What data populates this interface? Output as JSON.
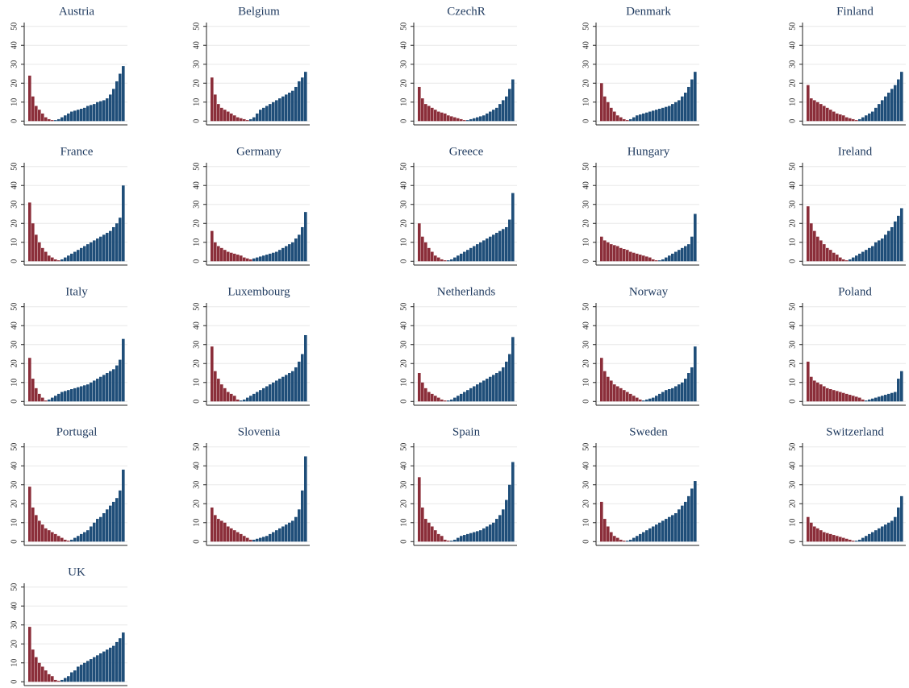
{
  "chart_data": [
    {
      "type": "bar",
      "title": "Austria",
      "series": [
        {
          "color": "#8b2e3a",
          "values": [
            24,
            13,
            8,
            6,
            4,
            2,
            1,
            0.5
          ]
        },
        {
          "color": "#1f4e79",
          "values": [
            0.5,
            1,
            2,
            3,
            4,
            5,
            5.5,
            6,
            6.5,
            7,
            8,
            8.5,
            9,
            10,
            10.5,
            11,
            12,
            14,
            17,
            21,
            25,
            29
          ]
        }
      ],
      "ylim": [
        -2,
        52
      ],
      "yticks": [
        0,
        10,
        20,
        30,
        40,
        50
      ],
      "grid": true
    },
    {
      "type": "bar",
      "title": "Belgium",
      "series": [
        {
          "color": "#8b2e3a",
          "values": [
            23,
            14,
            9,
            7,
            6,
            5,
            4,
            3,
            2,
            1.5,
            1,
            0.5
          ]
        },
        {
          "color": "#1f4e79",
          "values": [
            1,
            2,
            4,
            6,
            7,
            8,
            9,
            10,
            11,
            12,
            13,
            14,
            15,
            16,
            18,
            21,
            23,
            26
          ]
        }
      ],
      "ylim": [
        -2,
        52
      ],
      "yticks": [
        0,
        10,
        20,
        30,
        40,
        50
      ],
      "grid": true
    },
    {
      "type": "bar",
      "title": "CzechR",
      "series": [
        {
          "color": "#8b2e3a",
          "values": [
            18,
            12,
            9,
            8,
            7,
            6,
            5,
            4.5,
            4,
            3,
            2.5,
            2,
            1.5,
            1,
            0.5
          ]
        },
        {
          "color": "#1f4e79",
          "values": [
            0.5,
            1,
            1.5,
            2,
            2.5,
            3,
            4,
            5,
            6,
            7,
            9,
            11,
            13,
            17,
            22
          ]
        }
      ],
      "ylim": [
        -2,
        52
      ],
      "yticks": [
        0,
        10,
        20,
        30,
        40,
        50
      ],
      "grid": true
    },
    {
      "type": "bar",
      "title": "Denmark",
      "series": [
        {
          "color": "#8b2e3a",
          "values": [
            20,
            13,
            10,
            7,
            5,
            3,
            2,
            1,
            0.5
          ]
        },
        {
          "color": "#1f4e79",
          "values": [
            1,
            2,
            3,
            3.5,
            4,
            4.5,
            5,
            5.5,
            6,
            6.5,
            7,
            7.5,
            8,
            9,
            10,
            11,
            13,
            15,
            18,
            22,
            26
          ]
        }
      ],
      "ylim": [
        -2,
        52
      ],
      "yticks": [
        0,
        10,
        20,
        30,
        40,
        50
      ],
      "grid": true
    },
    {
      "type": "bar",
      "title": "Finland",
      "series": [
        {
          "color": "#8b2e3a",
          "values": [
            19,
            12,
            11,
            10,
            9,
            8,
            7,
            6,
            5,
            4,
            3.5,
            3,
            2,
            1.5,
            1,
            0.5
          ]
        },
        {
          "color": "#1f4e79",
          "values": [
            1,
            2,
            3,
            4,
            5,
            7,
            9,
            11,
            13,
            15,
            17,
            19,
            22,
            26
          ]
        }
      ],
      "ylim": [
        -2,
        52
      ],
      "yticks": [
        0,
        10,
        20,
        30,
        40,
        50
      ],
      "grid": true
    },
    {
      "type": "bar",
      "title": "France",
      "series": [
        {
          "color": "#8b2e3a",
          "values": [
            31,
            20,
            14,
            10,
            7,
            5,
            3,
            2,
            1,
            0.5
          ]
        },
        {
          "color": "#1f4e79",
          "values": [
            1,
            2,
            3,
            4,
            5,
            6,
            7,
            8,
            9,
            10,
            11,
            12,
            13,
            14,
            15,
            16,
            18,
            20,
            23,
            40
          ]
        }
      ],
      "ylim": [
        -2,
        52
      ],
      "yticks": [
        0,
        10,
        20,
        30,
        40,
        50
      ],
      "grid": true
    },
    {
      "type": "bar",
      "title": "Germany",
      "series": [
        {
          "color": "#8b2e3a",
          "values": [
            16,
            10,
            8,
            7,
            6,
            5,
            4.5,
            4,
            3.5,
            3,
            2,
            1.5,
            1
          ]
        },
        {
          "color": "#1f4e79",
          "values": [
            1.5,
            2,
            2.5,
            3,
            3.5,
            4,
            4.5,
            5,
            6,
            7,
            8,
            9,
            10,
            12,
            14,
            18,
            26
          ]
        }
      ],
      "ylim": [
        -2,
        52
      ],
      "yticks": [
        0,
        10,
        20,
        30,
        40,
        50
      ],
      "grid": true
    },
    {
      "type": "bar",
      "title": "Greece",
      "series": [
        {
          "color": "#8b2e3a",
          "values": [
            20,
            13,
            10,
            7,
            5,
            3,
            2,
            1,
            0.5
          ]
        },
        {
          "color": "#1f4e79",
          "values": [
            0.5,
            1,
            2,
            3,
            4,
            5,
            6,
            7,
            8,
            9,
            10,
            11,
            12,
            13,
            14,
            15,
            16,
            17,
            18,
            22,
            36
          ]
        }
      ],
      "ylim": [
        -2,
        52
      ],
      "yticks": [
        0,
        10,
        20,
        30,
        40,
        50
      ],
      "grid": true
    },
    {
      "type": "bar",
      "title": "Hungary",
      "series": [
        {
          "color": "#8b2e3a",
          "values": [
            13,
            11,
            10,
            9,
            8.5,
            8,
            7,
            6.5,
            6,
            5,
            4.5,
            4,
            3.5,
            3,
            2.5,
            2,
            1,
            0.5
          ]
        },
        {
          "color": "#1f4e79",
          "values": [
            0.5,
            1,
            2,
            3,
            4,
            5,
            6,
            7,
            8,
            9,
            13,
            25
          ]
        }
      ],
      "ylim": [
        -2,
        52
      ],
      "yticks": [
        0,
        10,
        20,
        30,
        40,
        50
      ],
      "grid": true
    },
    {
      "type": "bar",
      "title": "Ireland",
      "series": [
        {
          "color": "#8b2e3a",
          "values": [
            29,
            20,
            16,
            13,
            11,
            9,
            7,
            6,
            4.5,
            3.5,
            2,
            1,
            0.5
          ]
        },
        {
          "color": "#1f4e79",
          "values": [
            1,
            2,
            3,
            4,
            5,
            6,
            7,
            8,
            10,
            11,
            12,
            14,
            16,
            18,
            21,
            24,
            28
          ]
        }
      ],
      "ylim": [
        -2,
        52
      ],
      "yticks": [
        0,
        10,
        20,
        30,
        40,
        50
      ],
      "grid": true
    },
    {
      "type": "bar",
      "title": "Italy",
      "series": [
        {
          "color": "#8b2e3a",
          "values": [
            23,
            12,
            7,
            4,
            2,
            0.5
          ]
        },
        {
          "color": "#1f4e79",
          "values": [
            1,
            2,
            3,
            4,
            5,
            5.5,
            6,
            6.5,
            7,
            7.5,
            8,
            8.5,
            9,
            10,
            11,
            12,
            13,
            14,
            15,
            16,
            17,
            19,
            22,
            33
          ]
        }
      ],
      "ylim": [
        -2,
        52
      ],
      "yticks": [
        0,
        10,
        20,
        30,
        40,
        50
      ],
      "grid": true
    },
    {
      "type": "bar",
      "title": "Luxembourg",
      "series": [
        {
          "color": "#8b2e3a",
          "values": [
            29,
            16,
            12,
            9,
            7,
            5,
            4,
            3,
            1
          ]
        },
        {
          "color": "#1f4e79",
          "values": [
            0.5,
            1,
            2,
            3,
            4,
            5,
            6,
            7,
            8,
            9,
            10,
            11,
            12,
            13,
            14,
            15,
            16,
            18,
            21,
            25,
            35
          ]
        }
      ],
      "ylim": [
        -2,
        52
      ],
      "yticks": [
        0,
        10,
        20,
        30,
        40,
        50
      ],
      "grid": true
    },
    {
      "type": "bar",
      "title": "Netherlands",
      "series": [
        {
          "color": "#8b2e3a",
          "values": [
            15,
            10,
            7,
            5,
            4,
            3,
            2,
            1,
            0.5
          ]
        },
        {
          "color": "#1f4e79",
          "values": [
            0.5,
            1,
            2,
            3,
            4,
            5,
            6,
            7,
            8,
            9,
            10,
            11,
            12,
            13,
            14,
            15,
            16,
            18,
            21,
            25,
            34
          ]
        }
      ],
      "ylim": [
        -2,
        52
      ],
      "yticks": [
        0,
        10,
        20,
        30,
        40,
        50
      ],
      "grid": true
    },
    {
      "type": "bar",
      "title": "Norway",
      "series": [
        {
          "color": "#8b2e3a",
          "values": [
            23,
            16,
            13,
            11,
            9,
            8,
            7,
            6,
            5,
            4,
            3,
            2,
            1
          ]
        },
        {
          "color": "#1f4e79",
          "values": [
            0.5,
            1,
            1.5,
            2,
            3,
            4,
            5,
            6,
            6.5,
            7,
            8,
            9,
            10,
            12,
            15,
            18,
            29
          ]
        }
      ],
      "ylim": [
        -2,
        52
      ],
      "yticks": [
        0,
        10,
        20,
        30,
        40,
        50
      ],
      "grid": true
    },
    {
      "type": "bar",
      "title": "Poland",
      "series": [
        {
          "color": "#8b2e3a",
          "values": [
            21,
            13,
            11,
            10,
            9,
            8,
            7,
            6.5,
            6,
            5.5,
            5,
            4.5,
            4,
            3.5,
            3,
            2.5,
            2,
            1
          ]
        },
        {
          "color": "#1f4e79",
          "values": [
            0.5,
            1,
            1.5,
            2,
            2.5,
            3,
            3.5,
            4,
            4.5,
            5,
            12,
            16
          ]
        }
      ],
      "ylim": [
        -2,
        52
      ],
      "yticks": [
        0,
        10,
        20,
        30,
        40,
        50
      ],
      "grid": true
    },
    {
      "type": "bar",
      "title": "Portugal",
      "series": [
        {
          "color": "#8b2e3a",
          "values": [
            29,
            18,
            14,
            11,
            9,
            7,
            6,
            5,
            4,
            3,
            2,
            1,
            0.5
          ]
        },
        {
          "color": "#1f4e79",
          "values": [
            1,
            2,
            3,
            4,
            5,
            6,
            8,
            10,
            12,
            13,
            15,
            17,
            19,
            21,
            23,
            27,
            38
          ]
        }
      ],
      "ylim": [
        -2,
        52
      ],
      "yticks": [
        0,
        10,
        20,
        30,
        40,
        50
      ],
      "grid": true
    },
    {
      "type": "bar",
      "title": "Slovenia",
      "series": [
        {
          "color": "#8b2e3a",
          "values": [
            18,
            14,
            12,
            11,
            10,
            8,
            7,
            6,
            5,
            4,
            3,
            2,
            1
          ]
        },
        {
          "color": "#1f4e79",
          "values": [
            1,
            1.5,
            2,
            2.5,
            3,
            4,
            5,
            6,
            7,
            8,
            9,
            10,
            11,
            13,
            17,
            27,
            45
          ]
        }
      ],
      "ylim": [
        -2,
        52
      ],
      "yticks": [
        0,
        10,
        20,
        30,
        40,
        50
      ],
      "grid": true
    },
    {
      "type": "bar",
      "title": "Spain",
      "series": [
        {
          "color": "#8b2e3a",
          "values": [
            34,
            18,
            12,
            10,
            8,
            6,
            4,
            3,
            1,
            0.5
          ]
        },
        {
          "color": "#1f4e79",
          "values": [
            0.5,
            1,
            2,
            3,
            3.5,
            4,
            4.5,
            5,
            5.5,
            6,
            7,
            8,
            9,
            10,
            12,
            14,
            17,
            22,
            30,
            42
          ]
        }
      ],
      "ylim": [
        -2,
        52
      ],
      "yticks": [
        0,
        10,
        20,
        30,
        40,
        50
      ],
      "grid": true
    },
    {
      "type": "bar",
      "title": "Sweden",
      "series": [
        {
          "color": "#8b2e3a",
          "values": [
            21,
            12,
            8,
            5,
            3,
            2,
            1,
            0.5
          ]
        },
        {
          "color": "#1f4e79",
          "values": [
            0.5,
            1,
            2,
            3,
            4,
            5,
            6,
            7,
            8,
            9,
            10,
            11,
            12,
            13,
            14,
            15,
            17,
            19,
            21,
            24,
            28,
            32
          ]
        }
      ],
      "ylim": [
        -2,
        52
      ],
      "yticks": [
        0,
        10,
        20,
        30,
        40,
        50
      ],
      "grid": true
    },
    {
      "type": "bar",
      "title": "Switzerland",
      "series": [
        {
          "color": "#8b2e3a",
          "values": [
            13,
            10,
            8,
            7,
            6,
            5,
            4.5,
            4,
            3.5,
            3,
            2.5,
            2,
            1.5,
            1,
            0.5
          ]
        },
        {
          "color": "#1f4e79",
          "values": [
            0.5,
            1,
            2,
            3,
            4,
            5,
            6,
            7,
            8,
            9,
            10,
            11,
            13,
            18,
            24
          ]
        }
      ],
      "ylim": [
        -2,
        52
      ],
      "yticks": [
        0,
        10,
        20,
        30,
        40,
        50
      ],
      "grid": true
    },
    {
      "type": "bar",
      "title": "UK",
      "series": [
        {
          "color": "#8b2e3a",
          "values": [
            29,
            17,
            13,
            10,
            8,
            6,
            4,
            3,
            1,
            0.5
          ]
        },
        {
          "color": "#1f4e79",
          "values": [
            1,
            2,
            3,
            5,
            6,
            8,
            9,
            10,
            11,
            12,
            13,
            14,
            15,
            16,
            17,
            18,
            19,
            21,
            23,
            26
          ]
        }
      ],
      "ylim": [
        -2,
        52
      ],
      "yticks": [
        0,
        10,
        20,
        30,
        40,
        50
      ],
      "grid": true
    }
  ]
}
